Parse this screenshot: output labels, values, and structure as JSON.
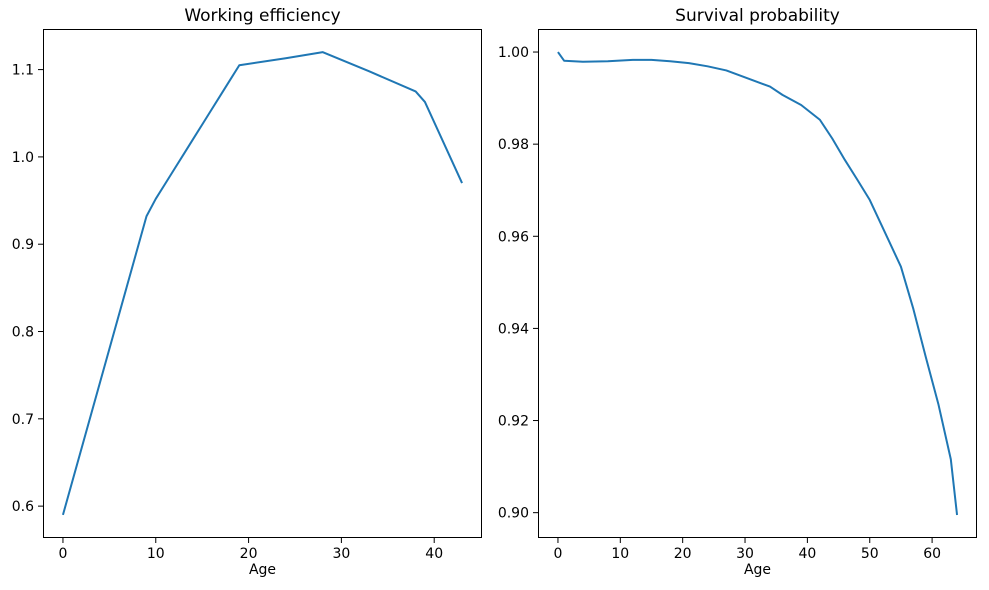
{
  "figure": {
    "background": "#ffffff",
    "axis_color": "#000000",
    "text_color": "#000000"
  },
  "chart_data": [
    {
      "type": "line",
      "title": "Working efficiency",
      "xlabel": "Age",
      "ylabel": "",
      "legend": null,
      "grid": false,
      "line_color": "#1f77b4",
      "xlim": [
        -2.15,
        45.15
      ],
      "ylim": [
        0.5635,
        1.1465
      ],
      "xticks": [
        0,
        10,
        20,
        30,
        40
      ],
      "xtick_labels": [
        "0",
        "10",
        "20",
        "30",
        "40"
      ],
      "yticks": [
        0.6,
        0.7,
        0.8,
        0.9,
        1.0,
        1.1
      ],
      "ytick_labels": [
        "0.6",
        "0.7",
        "0.8",
        "0.9",
        "1.0",
        "1.1"
      ],
      "points": [
        [
          0,
          0.59
        ],
        [
          9,
          0.932
        ],
        [
          10,
          0.952
        ],
        [
          11,
          0.969
        ],
        [
          12,
          0.986
        ],
        [
          13,
          1.003
        ],
        [
          14,
          1.02
        ],
        [
          15,
          1.037
        ],
        [
          16,
          1.054
        ],
        [
          17,
          1.071
        ],
        [
          18,
          1.088
        ],
        [
          19,
          1.105
        ],
        [
          24,
          1.113
        ],
        [
          28,
          1.12
        ],
        [
          33,
          1.098
        ],
        [
          38,
          1.075
        ],
        [
          39,
          1.063
        ],
        [
          43,
          0.97
        ]
      ]
    },
    {
      "type": "line",
      "title": "Survival probability",
      "xlabel": "Age",
      "ylabel": "",
      "legend": null,
      "grid": false,
      "line_color": "#1f77b4",
      "xlim": [
        -3.2,
        67.2
      ],
      "ylim": [
        0.8945,
        1.005
      ],
      "xticks": [
        0,
        10,
        20,
        30,
        40,
        50,
        60
      ],
      "xtick_labels": [
        "0",
        "10",
        "20",
        "30",
        "40",
        "50",
        "60"
      ],
      "yticks": [
        0.9,
        0.92,
        0.94,
        0.96,
        0.98,
        1.0
      ],
      "ytick_labels": [
        "0.90",
        "0.92",
        "0.94",
        "0.96",
        "0.98",
        "1.00"
      ],
      "points": [
        [
          0,
          1.0
        ],
        [
          1,
          0.9981
        ],
        [
          4,
          0.9979
        ],
        [
          8,
          0.998
        ],
        [
          12,
          0.9983
        ],
        [
          15,
          0.9983
        ],
        [
          18,
          0.998
        ],
        [
          21,
          0.9976
        ],
        [
          24,
          0.9969
        ],
        [
          27,
          0.996
        ],
        [
          29,
          0.995
        ],
        [
          31,
          0.994
        ],
        [
          34,
          0.9925
        ],
        [
          36,
          0.9907
        ],
        [
          39,
          0.9885
        ],
        [
          42,
          0.9853
        ],
        [
          44,
          0.9812
        ],
        [
          46,
          0.9766
        ],
        [
          48,
          0.9723
        ],
        [
          50,
          0.9679
        ],
        [
          53,
          0.9592
        ],
        [
          55,
          0.9534
        ],
        [
          57,
          0.9442
        ],
        [
          59,
          0.9337
        ],
        [
          61,
          0.9236
        ],
        [
          63,
          0.9116
        ],
        [
          64,
          0.8995
        ]
      ]
    }
  ]
}
